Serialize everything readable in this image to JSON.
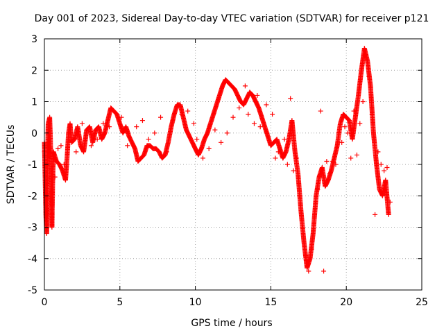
{
  "chart_data": {
    "type": "scatter",
    "title": "Day 001 of 2023, Sidereal Day-to-day VTEC variation (SDTVAR) for receiver p121",
    "xlabel": "GPS time / hours",
    "ylabel": "SDTVAR / TECUs",
    "xlim": [
      0,
      25
    ],
    "ylim": [
      -5,
      3
    ],
    "xticks": [
      0,
      5,
      10,
      15,
      20,
      25
    ],
    "yticks": [
      -5,
      -4,
      -3,
      -2,
      -1,
      0,
      1,
      2,
      3
    ],
    "grid": true,
    "marker": "+",
    "color": "#ff0000",
    "series": [
      {
        "name": "SDTVAR",
        "trace": [
          [
            0.0,
            -0.3
          ],
          [
            0.1,
            -2.6
          ],
          [
            0.15,
            -3.2
          ],
          [
            0.2,
            -1.0
          ],
          [
            0.25,
            0.3
          ],
          [
            0.35,
            0.5
          ],
          [
            0.4,
            -0.2
          ],
          [
            0.45,
            -2.0
          ],
          [
            0.5,
            -3.0
          ],
          [
            0.55,
            -1.5
          ],
          [
            0.6,
            -0.6
          ],
          [
            0.8,
            -0.9
          ],
          [
            1.0,
            -1.0
          ],
          [
            1.2,
            -1.2
          ],
          [
            1.4,
            -1.5
          ],
          [
            1.5,
            -0.8
          ],
          [
            1.6,
            0.0
          ],
          [
            1.7,
            0.3
          ],
          [
            1.8,
            -0.3
          ],
          [
            2.0,
            -0.2
          ],
          [
            2.2,
            0.2
          ],
          [
            2.4,
            -0.4
          ],
          [
            2.6,
            -0.6
          ],
          [
            2.8,
            0.1
          ],
          [
            3.0,
            0.2
          ],
          [
            3.2,
            -0.3
          ],
          [
            3.4,
            0.1
          ],
          [
            3.6,
            0.2
          ],
          [
            3.8,
            -0.2
          ],
          [
            4.0,
            0.0
          ],
          [
            4.2,
            0.4
          ],
          [
            4.4,
            0.8
          ],
          [
            4.6,
            0.7
          ],
          [
            4.8,
            0.6
          ],
          [
            5.0,
            0.3
          ],
          [
            5.2,
            0.0
          ],
          [
            5.4,
            0.2
          ],
          [
            5.6,
            -0.1
          ],
          [
            5.8,
            -0.3
          ],
          [
            6.0,
            -0.5
          ],
          [
            6.2,
            -0.9
          ],
          [
            6.4,
            -0.8
          ],
          [
            6.6,
            -0.7
          ],
          [
            6.8,
            -0.4
          ],
          [
            7.0,
            -0.4
          ],
          [
            7.2,
            -0.5
          ],
          [
            7.4,
            -0.5
          ],
          [
            7.6,
            -0.6
          ],
          [
            7.8,
            -0.8
          ],
          [
            8.0,
            -0.7
          ],
          [
            8.2,
            -0.3
          ],
          [
            8.4,
            0.2
          ],
          [
            8.6,
            0.6
          ],
          [
            8.8,
            0.9
          ],
          [
            9.0,
            0.9
          ],
          [
            9.2,
            0.5
          ],
          [
            9.4,
            0.1
          ],
          [
            9.6,
            -0.1
          ],
          [
            9.8,
            -0.3
          ],
          [
            10.0,
            -0.5
          ],
          [
            10.2,
            -0.7
          ],
          [
            10.4,
            -0.5
          ],
          [
            10.6,
            -0.2
          ],
          [
            10.8,
            0.0
          ],
          [
            11.0,
            0.3
          ],
          [
            11.2,
            0.6
          ],
          [
            11.4,
            0.9
          ],
          [
            11.6,
            1.2
          ],
          [
            11.8,
            1.5
          ],
          [
            12.0,
            1.7
          ],
          [
            12.2,
            1.6
          ],
          [
            12.4,
            1.5
          ],
          [
            12.6,
            1.4
          ],
          [
            12.8,
            1.2
          ],
          [
            13.0,
            1.0
          ],
          [
            13.2,
            0.9
          ],
          [
            13.4,
            1.1
          ],
          [
            13.6,
            1.3
          ],
          [
            13.8,
            1.2
          ],
          [
            14.0,
            1.0
          ],
          [
            14.2,
            0.8
          ],
          [
            14.4,
            0.5
          ],
          [
            14.6,
            0.2
          ],
          [
            14.8,
            -0.1
          ],
          [
            15.0,
            -0.4
          ],
          [
            15.2,
            -0.3
          ],
          [
            15.4,
            -0.2
          ],
          [
            15.6,
            -0.5
          ],
          [
            15.8,
            -0.8
          ],
          [
            16.0,
            -0.6
          ],
          [
            16.2,
            -0.2
          ],
          [
            16.4,
            0.4
          ],
          [
            16.6,
            -0.6
          ],
          [
            16.8,
            -1.3
          ],
          [
            17.0,
            -2.5
          ],
          [
            17.2,
            -3.5
          ],
          [
            17.4,
            -4.3
          ],
          [
            17.6,
            -4.0
          ],
          [
            17.8,
            -3.2
          ],
          [
            18.0,
            -2.0
          ],
          [
            18.2,
            -1.4
          ],
          [
            18.4,
            -1.1
          ],
          [
            18.6,
            -1.7
          ],
          [
            18.8,
            -1.5
          ],
          [
            19.0,
            -1.2
          ],
          [
            19.2,
            -0.8
          ],
          [
            19.4,
            -0.4
          ],
          [
            19.6,
            0.3
          ],
          [
            19.8,
            0.6
          ],
          [
            20.0,
            0.5
          ],
          [
            20.2,
            0.4
          ],
          [
            20.4,
            -0.2
          ],
          [
            20.6,
            0.5
          ],
          [
            20.8,
            1.2
          ],
          [
            21.0,
            2.0
          ],
          [
            21.2,
            2.7
          ],
          [
            21.4,
            2.3
          ],
          [
            21.6,
            1.5
          ],
          [
            21.8,
            0.0
          ],
          [
            22.0,
            -1.0
          ],
          [
            22.2,
            -1.8
          ],
          [
            22.4,
            -2.0
          ],
          [
            22.6,
            -1.5
          ],
          [
            22.8,
            -2.6
          ]
        ],
        "extra": [
          [
            0.0,
            -0.6
          ],
          [
            0.05,
            -1.5
          ],
          [
            0.3,
            -0.2
          ],
          [
            0.7,
            -1.4
          ],
          [
            0.9,
            -0.5
          ],
          [
            1.1,
            -0.4
          ],
          [
            1.3,
            -1.0
          ],
          [
            2.1,
            -0.6
          ],
          [
            2.5,
            0.3
          ],
          [
            3.1,
            -0.4
          ],
          [
            3.5,
            -0.2
          ],
          [
            3.9,
            0.3
          ],
          [
            4.3,
            0.2
          ],
          [
            5.1,
            0.5
          ],
          [
            5.5,
            -0.4
          ],
          [
            6.1,
            0.2
          ],
          [
            6.5,
            0.4
          ],
          [
            6.9,
            -0.2
          ],
          [
            7.3,
            0.0
          ],
          [
            7.7,
            0.5
          ],
          [
            8.1,
            -0.6
          ],
          [
            8.5,
            0.4
          ],
          [
            9.1,
            0.6
          ],
          [
            9.5,
            0.7
          ],
          [
            9.9,
            0.3
          ],
          [
            10.1,
            -0.2
          ],
          [
            10.5,
            -0.8
          ],
          [
            10.9,
            -0.5
          ],
          [
            11.3,
            0.1
          ],
          [
            11.7,
            -0.3
          ],
          [
            12.1,
            0.0
          ],
          [
            12.5,
            0.5
          ],
          [
            12.9,
            0.8
          ],
          [
            13.3,
            1.5
          ],
          [
            13.5,
            0.6
          ],
          [
            13.9,
            0.3
          ],
          [
            14.1,
            1.2
          ],
          [
            14.3,
            0.2
          ],
          [
            14.7,
            0.9
          ],
          [
            15.1,
            0.6
          ],
          [
            15.3,
            -0.8
          ],
          [
            15.5,
            -0.6
          ],
          [
            15.9,
            -0.2
          ],
          [
            16.1,
            -1.0
          ],
          [
            16.3,
            1.1
          ],
          [
            16.5,
            -1.2
          ],
          [
            16.7,
            -0.8
          ],
          [
            16.9,
            -2.0
          ],
          [
            17.1,
            -3.0
          ],
          [
            17.3,
            -3.9
          ],
          [
            17.5,
            -4.4
          ],
          [
            17.7,
            -3.7
          ],
          [
            17.9,
            -2.6
          ],
          [
            18.1,
            -1.8
          ],
          [
            18.3,
            0.7
          ],
          [
            18.5,
            -4.4
          ],
          [
            18.7,
            -0.9
          ],
          [
            18.9,
            -1.3
          ],
          [
            19.1,
            -0.9
          ],
          [
            19.3,
            -1.0
          ],
          [
            19.5,
            0.0
          ],
          [
            19.7,
            -0.3
          ],
          [
            19.9,
            0.2
          ],
          [
            20.1,
            0.0
          ],
          [
            20.3,
            -0.8
          ],
          [
            20.5,
            0.7
          ],
          [
            20.7,
            -0.7
          ],
          [
            20.9,
            0.3
          ],
          [
            21.1,
            1.0
          ],
          [
            21.3,
            2.5
          ],
          [
            21.5,
            1.8
          ],
          [
            21.7,
            0.6
          ],
          [
            21.9,
            -2.6
          ],
          [
            22.1,
            -0.6
          ],
          [
            22.3,
            -1.0
          ],
          [
            22.5,
            -1.2
          ],
          [
            22.7,
            -1.1
          ],
          [
            22.9,
            -2.2
          ]
        ]
      }
    ]
  }
}
